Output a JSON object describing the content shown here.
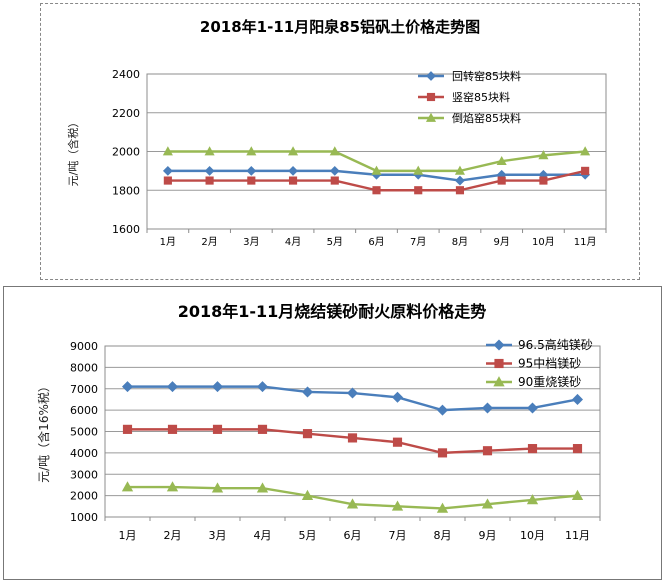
{
  "chart_data": [
    {
      "type": "line",
      "title": "2018年1-11月阳泉85铝矾土价格走势图",
      "ylabel": "元/吨（含税）",
      "xlabel": "",
      "categories": [
        "1月",
        "2月",
        "3月",
        "4月",
        "5月",
        "6月",
        "7月",
        "8月",
        "9月",
        "10月",
        "11月"
      ],
      "ylim": [
        1600,
        2400
      ],
      "yticks": [
        "1600",
        "1800",
        "2000",
        "2200",
        "2400"
      ],
      "grid": true,
      "legend_position": "top-right",
      "series": [
        {
          "name": "回转窑85块料",
          "color": "#4a7ebb",
          "marker": "diamond",
          "values": [
            1900,
            1900,
            1900,
            1900,
            1900,
            1880,
            1880,
            1850,
            1880,
            1880,
            1880
          ]
        },
        {
          "name": "竖窑85块料",
          "color": "#be4b48",
          "marker": "square",
          "values": [
            1850,
            1850,
            1850,
            1850,
            1850,
            1800,
            1800,
            1800,
            1850,
            1850,
            1900
          ]
        },
        {
          "name": "倒焰窑85块料",
          "color": "#98b954",
          "marker": "triangle",
          "values": [
            2000,
            2000,
            2000,
            2000,
            2000,
            1900,
            1900,
            1900,
            1950,
            1980,
            2000
          ]
        }
      ]
    },
    {
      "type": "line",
      "title": "2018年1-11月烧结镁砂耐火原料价格走势",
      "ylabel": "元/吨（含16%税）",
      "xlabel": "",
      "categories": [
        "1月",
        "2月",
        "3月",
        "4月",
        "5月",
        "6月",
        "7月",
        "8月",
        "9月",
        "10月",
        "11月"
      ],
      "ylim": [
        1000,
        9000
      ],
      "yticks": [
        "1000",
        "2000",
        "3000",
        "4000",
        "5000",
        "6000",
        "7000",
        "8000",
        "9000"
      ],
      "grid": true,
      "legend_position": "top-right",
      "series": [
        {
          "name": "96.5高纯镁砂",
          "color": "#4a7ebb",
          "marker": "diamond",
          "values": [
            7100,
            7100,
            7100,
            7100,
            6850,
            6800,
            6600,
            6000,
            6100,
            6100,
            6500
          ]
        },
        {
          "name": "95中档镁砂",
          "color": "#be4b48",
          "marker": "square",
          "values": [
            5100,
            5100,
            5100,
            5100,
            4900,
            4700,
            4500,
            4000,
            4100,
            4200,
            4200
          ]
        },
        {
          "name": "90重烧镁砂",
          "color": "#98b954",
          "marker": "triangle",
          "values": [
            2400,
            2400,
            2350,
            2350,
            2000,
            1600,
            1500,
            1400,
            1600,
            1800,
            2000
          ]
        }
      ]
    }
  ]
}
